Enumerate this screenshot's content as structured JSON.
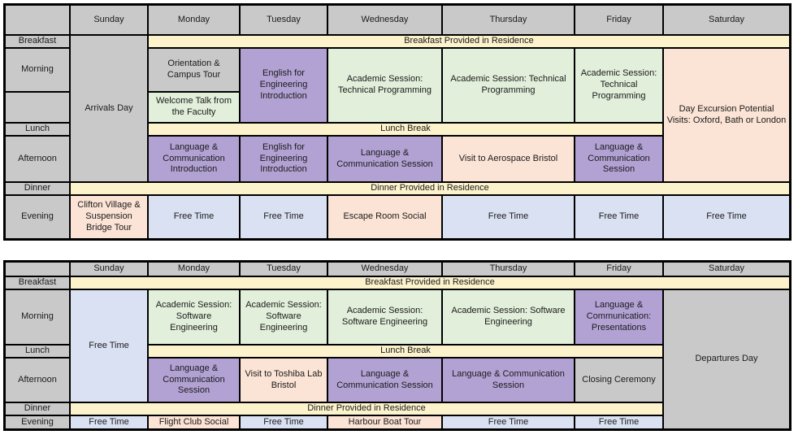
{
  "palette": {
    "gray": "#c9c9c9",
    "yellow": "#fcf2cc",
    "green": "#e2efda",
    "purple": "#b2a2d4",
    "peach": "#fbe3d5",
    "blue": "#d9e1f2",
    "border": "#000000",
    "text": "#1b1b1b"
  },
  "tables": [
    {
      "id": "week1",
      "name": "week1-schedule-table",
      "cells": [
        {
          "kind": "corner-cell",
          "text": "",
          "color": "gray",
          "col": 1,
          "row": 1
        },
        {
          "kind": "day-header",
          "text": "Sunday",
          "color": "gray",
          "col": 2,
          "row": 1
        },
        {
          "kind": "day-header",
          "text": "Monday",
          "color": "gray",
          "col": 3,
          "row": 1
        },
        {
          "kind": "day-header",
          "text": "Tuesday",
          "color": "gray",
          "col": 4,
          "row": 1
        },
        {
          "kind": "day-header",
          "text": "Wednesday",
          "color": "gray",
          "col": 5,
          "row": 1
        },
        {
          "kind": "day-header",
          "text": "Thursday",
          "color": "gray",
          "col": 6,
          "row": 1
        },
        {
          "kind": "day-header",
          "text": "Friday",
          "color": "gray",
          "col": 7,
          "row": 1
        },
        {
          "kind": "day-header",
          "text": "Saturday",
          "color": "gray",
          "col": 8,
          "row": 1
        },
        {
          "kind": "time-label",
          "text": "Breakfast",
          "color": "gray",
          "col": 1,
          "row": 2
        },
        {
          "kind": "event-cell",
          "text": "Arrivals Day",
          "color": "gray",
          "col": 2,
          "row": 2,
          "rowspan": 5
        },
        {
          "kind": "meal-band",
          "text": "Breakfast Provided in Residence",
          "color": "yellow",
          "col": 3,
          "row": 2,
          "colspan": 6
        },
        {
          "kind": "time-label",
          "text": "Morning",
          "color": "gray",
          "col": 1,
          "row": 3
        },
        {
          "kind": "event-cell",
          "text": "Orientation & Campus Tour",
          "color": "gray",
          "col": 3,
          "row": 3
        },
        {
          "kind": "event-cell",
          "text": "English for Engineering Introduction",
          "color": "purple",
          "col": 4,
          "row": 3,
          "rowspan": 2
        },
        {
          "kind": "event-cell",
          "text": "Academic Session: Technical Programming",
          "color": "green",
          "col": 5,
          "row": 3,
          "rowspan": 2
        },
        {
          "kind": "event-cell",
          "text": "Academic Session: Technical Programming",
          "color": "green",
          "col": 6,
          "row": 3,
          "rowspan": 2
        },
        {
          "kind": "event-cell",
          "text": "Academic Session: Technical Programming",
          "color": "green",
          "col": 7,
          "row": 3,
          "rowspan": 2
        },
        {
          "kind": "event-cell",
          "text": "Day Excursion Potential Visits: Oxford, Bath or London",
          "color": "peach",
          "col": 8,
          "row": 3,
          "rowspan": 4
        },
        {
          "kind": "time-label",
          "text": "",
          "color": "gray",
          "col": 1,
          "row": 4
        },
        {
          "kind": "event-cell",
          "text": "Welcome Talk from the Faculty",
          "color": "green",
          "col": 3,
          "row": 4
        },
        {
          "kind": "time-label",
          "text": "Lunch",
          "color": "gray",
          "col": 1,
          "row": 5
        },
        {
          "kind": "meal-band",
          "text": "Lunch Break",
          "color": "yellow",
          "col": 3,
          "row": 5,
          "colspan": 5
        },
        {
          "kind": "time-label",
          "text": "Afternoon",
          "color": "gray",
          "col": 1,
          "row": 6
        },
        {
          "kind": "event-cell",
          "text": "Language & Communication Introduction",
          "color": "purple",
          "col": 3,
          "row": 6
        },
        {
          "kind": "event-cell",
          "text": "English for Engineering Introduction",
          "color": "purple",
          "col": 4,
          "row": 6
        },
        {
          "kind": "event-cell",
          "text": "Language & Communication Session",
          "color": "purple",
          "col": 5,
          "row": 6
        },
        {
          "kind": "event-cell",
          "text": "Visit to Aerospace Bristol",
          "color": "peach",
          "col": 6,
          "row": 6
        },
        {
          "kind": "event-cell",
          "text": "Language & Communication Session",
          "color": "purple",
          "col": 7,
          "row": 6
        },
        {
          "kind": "time-label",
          "text": "Dinner",
          "color": "gray",
          "col": 1,
          "row": 7
        },
        {
          "kind": "meal-band",
          "text": "Dinner Provided in Residence",
          "color": "yellow",
          "col": 2,
          "row": 7,
          "colspan": 7
        },
        {
          "kind": "time-label",
          "text": "Evening",
          "color": "gray",
          "col": 1,
          "row": 8
        },
        {
          "kind": "event-cell",
          "text": "Clifton Village & Suspension Bridge Tour",
          "color": "peach",
          "col": 2,
          "row": 8
        },
        {
          "kind": "event-cell",
          "text": "Free Time",
          "color": "blue",
          "col": 3,
          "row": 8
        },
        {
          "kind": "event-cell",
          "text": "Free Time",
          "color": "blue",
          "col": 4,
          "row": 8
        },
        {
          "kind": "event-cell",
          "text": "Escape Room Social",
          "color": "peach",
          "col": 5,
          "row": 8
        },
        {
          "kind": "event-cell",
          "text": "Free Time",
          "color": "blue",
          "col": 6,
          "row": 8
        },
        {
          "kind": "event-cell",
          "text": "Free Time",
          "color": "blue",
          "col": 7,
          "row": 8
        },
        {
          "kind": "event-cell",
          "text": "Free Time",
          "color": "blue",
          "col": 8,
          "row": 8
        }
      ]
    },
    {
      "id": "week2",
      "name": "week2-schedule-table",
      "cells": [
        {
          "kind": "corner-cell",
          "text": "",
          "color": "gray",
          "col": 1,
          "row": 1
        },
        {
          "kind": "day-header",
          "text": "Sunday",
          "color": "gray",
          "col": 2,
          "row": 1
        },
        {
          "kind": "day-header",
          "text": "Monday",
          "color": "gray",
          "col": 3,
          "row": 1
        },
        {
          "kind": "day-header",
          "text": "Tuesday",
          "color": "gray",
          "col": 4,
          "row": 1
        },
        {
          "kind": "day-header",
          "text": "Wednesday",
          "color": "gray",
          "col": 5,
          "row": 1
        },
        {
          "kind": "day-header",
          "text": "Thursday",
          "color": "gray",
          "col": 6,
          "row": 1
        },
        {
          "kind": "day-header",
          "text": "Friday",
          "color": "gray",
          "col": 7,
          "row": 1
        },
        {
          "kind": "day-header",
          "text": "Saturday",
          "color": "gray",
          "col": 8,
          "row": 1
        },
        {
          "kind": "time-label",
          "text": "Breakfast",
          "color": "gray",
          "col": 1,
          "row": 2
        },
        {
          "kind": "meal-band",
          "text": "Breakfast Provided in Residence",
          "color": "yellow",
          "col": 2,
          "row": 2,
          "colspan": 7
        },
        {
          "kind": "time-label",
          "text": "Morning",
          "color": "gray",
          "col": 1,
          "row": 3
        },
        {
          "kind": "event-cell",
          "text": "Free Time",
          "color": "blue",
          "col": 2,
          "row": 3,
          "rowspan": 3
        },
        {
          "kind": "event-cell",
          "text": "Academic Session: Software Engineering",
          "color": "green",
          "col": 3,
          "row": 3
        },
        {
          "kind": "event-cell",
          "text": "Academic Session: Software Engineering",
          "color": "green",
          "col": 4,
          "row": 3
        },
        {
          "kind": "event-cell",
          "text": "Academic Session: Software Engineering",
          "color": "green",
          "col": 5,
          "row": 3
        },
        {
          "kind": "event-cell",
          "text": "Academic Session: Software Engineering",
          "color": "green",
          "col": 6,
          "row": 3
        },
        {
          "kind": "event-cell",
          "text": "Language & Communication: Presentations",
          "color": "purple",
          "col": 7,
          "row": 3
        },
        {
          "kind": "event-cell",
          "text": "Departures Day",
          "color": "gray",
          "col": 8,
          "row": 3,
          "rowspan": 5
        },
        {
          "kind": "time-label",
          "text": "Lunch",
          "color": "gray",
          "col": 1,
          "row": 4
        },
        {
          "kind": "meal-band",
          "text": "Lunch Break",
          "color": "yellow",
          "col": 3,
          "row": 4,
          "colspan": 5
        },
        {
          "kind": "time-label",
          "text": "Afternoon",
          "color": "gray",
          "col": 1,
          "row": 5
        },
        {
          "kind": "event-cell",
          "text": "Language & Communication Session",
          "color": "purple",
          "col": 3,
          "row": 5
        },
        {
          "kind": "event-cell",
          "text": "Visit to Toshiba Lab Bristol",
          "color": "peach",
          "col": 4,
          "row": 5
        },
        {
          "kind": "event-cell",
          "text": "Language & Communication Session",
          "color": "purple",
          "col": 5,
          "row": 5
        },
        {
          "kind": "event-cell",
          "text": "Language & Communication Session",
          "color": "purple",
          "col": 6,
          "row": 5
        },
        {
          "kind": "event-cell",
          "text": "Closing Ceremony",
          "color": "gray",
          "col": 7,
          "row": 5
        },
        {
          "kind": "time-label",
          "text": "Dinner",
          "color": "gray",
          "col": 1,
          "row": 6
        },
        {
          "kind": "meal-band",
          "text": "Dinner Provided in Residence",
          "color": "yellow",
          "col": 2,
          "row": 6,
          "colspan": 6
        },
        {
          "kind": "time-label",
          "text": "Evening",
          "color": "gray",
          "col": 1,
          "row": 7
        },
        {
          "kind": "event-cell",
          "text": "Free Time",
          "color": "blue",
          "col": 2,
          "row": 7
        },
        {
          "kind": "event-cell",
          "text": "Flight Club Social",
          "color": "peach",
          "col": 3,
          "row": 7
        },
        {
          "kind": "event-cell",
          "text": "Free Time",
          "color": "blue",
          "col": 4,
          "row": 7
        },
        {
          "kind": "event-cell",
          "text": "Harbour Boat Tour",
          "color": "peach",
          "col": 5,
          "row": 7
        },
        {
          "kind": "event-cell",
          "text": "Free Time",
          "color": "blue",
          "col": 6,
          "row": 7
        },
        {
          "kind": "event-cell",
          "text": "Free Time",
          "color": "blue",
          "col": 7,
          "row": 7
        }
      ]
    }
  ]
}
